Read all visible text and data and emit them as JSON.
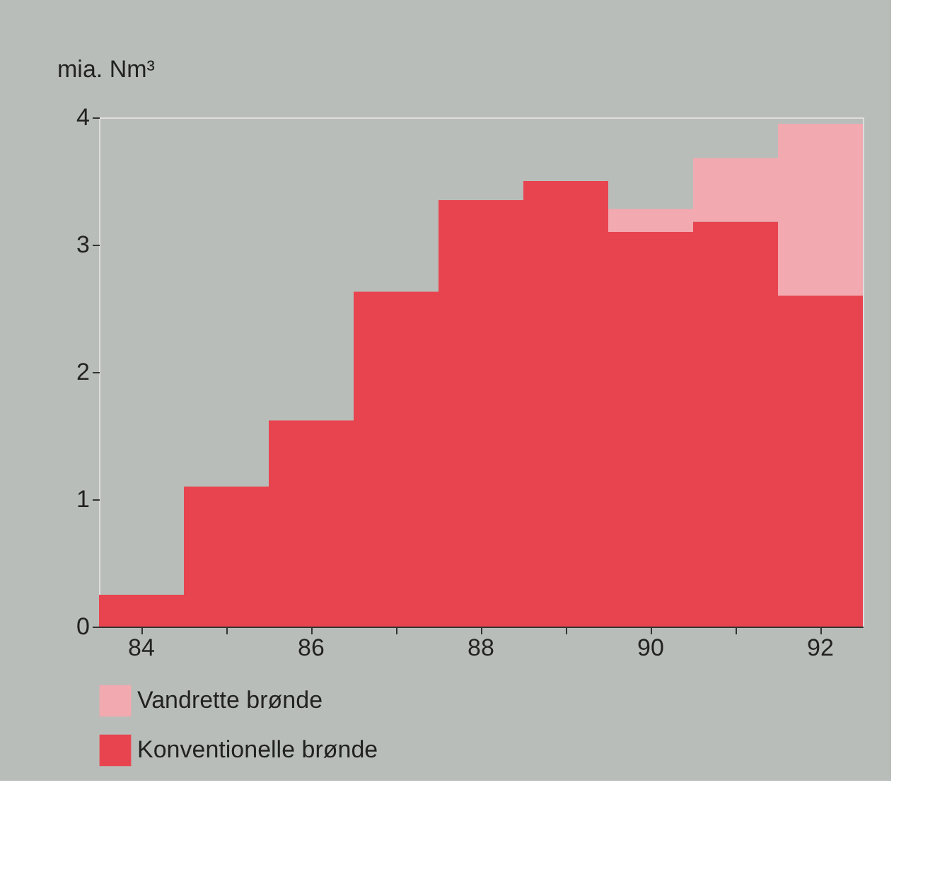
{
  "chart_data": {
    "type": "bar",
    "stacked": true,
    "ylabel": "mia. Nm³",
    "categories": [
      "84",
      null,
      "86",
      null,
      "88",
      null,
      "90",
      null,
      "92"
    ],
    "series": [
      {
        "name": "Konventionelle brønde",
        "color": "#e8444f",
        "values": [
          0.25,
          1.1,
          1.62,
          2.63,
          3.35,
          3.5,
          3.1,
          3.18,
          2.6
        ]
      },
      {
        "name": "Vandrette brønde",
        "color": "#f2a9b0",
        "values": [
          0,
          0,
          0,
          0,
          0,
          0,
          0.18,
          0.5,
          1.35
        ]
      }
    ],
    "ylim": [
      0,
      4
    ],
    "yticks": [
      0,
      1,
      2,
      3,
      4
    ],
    "grid": false,
    "legend": "bottom"
  }
}
